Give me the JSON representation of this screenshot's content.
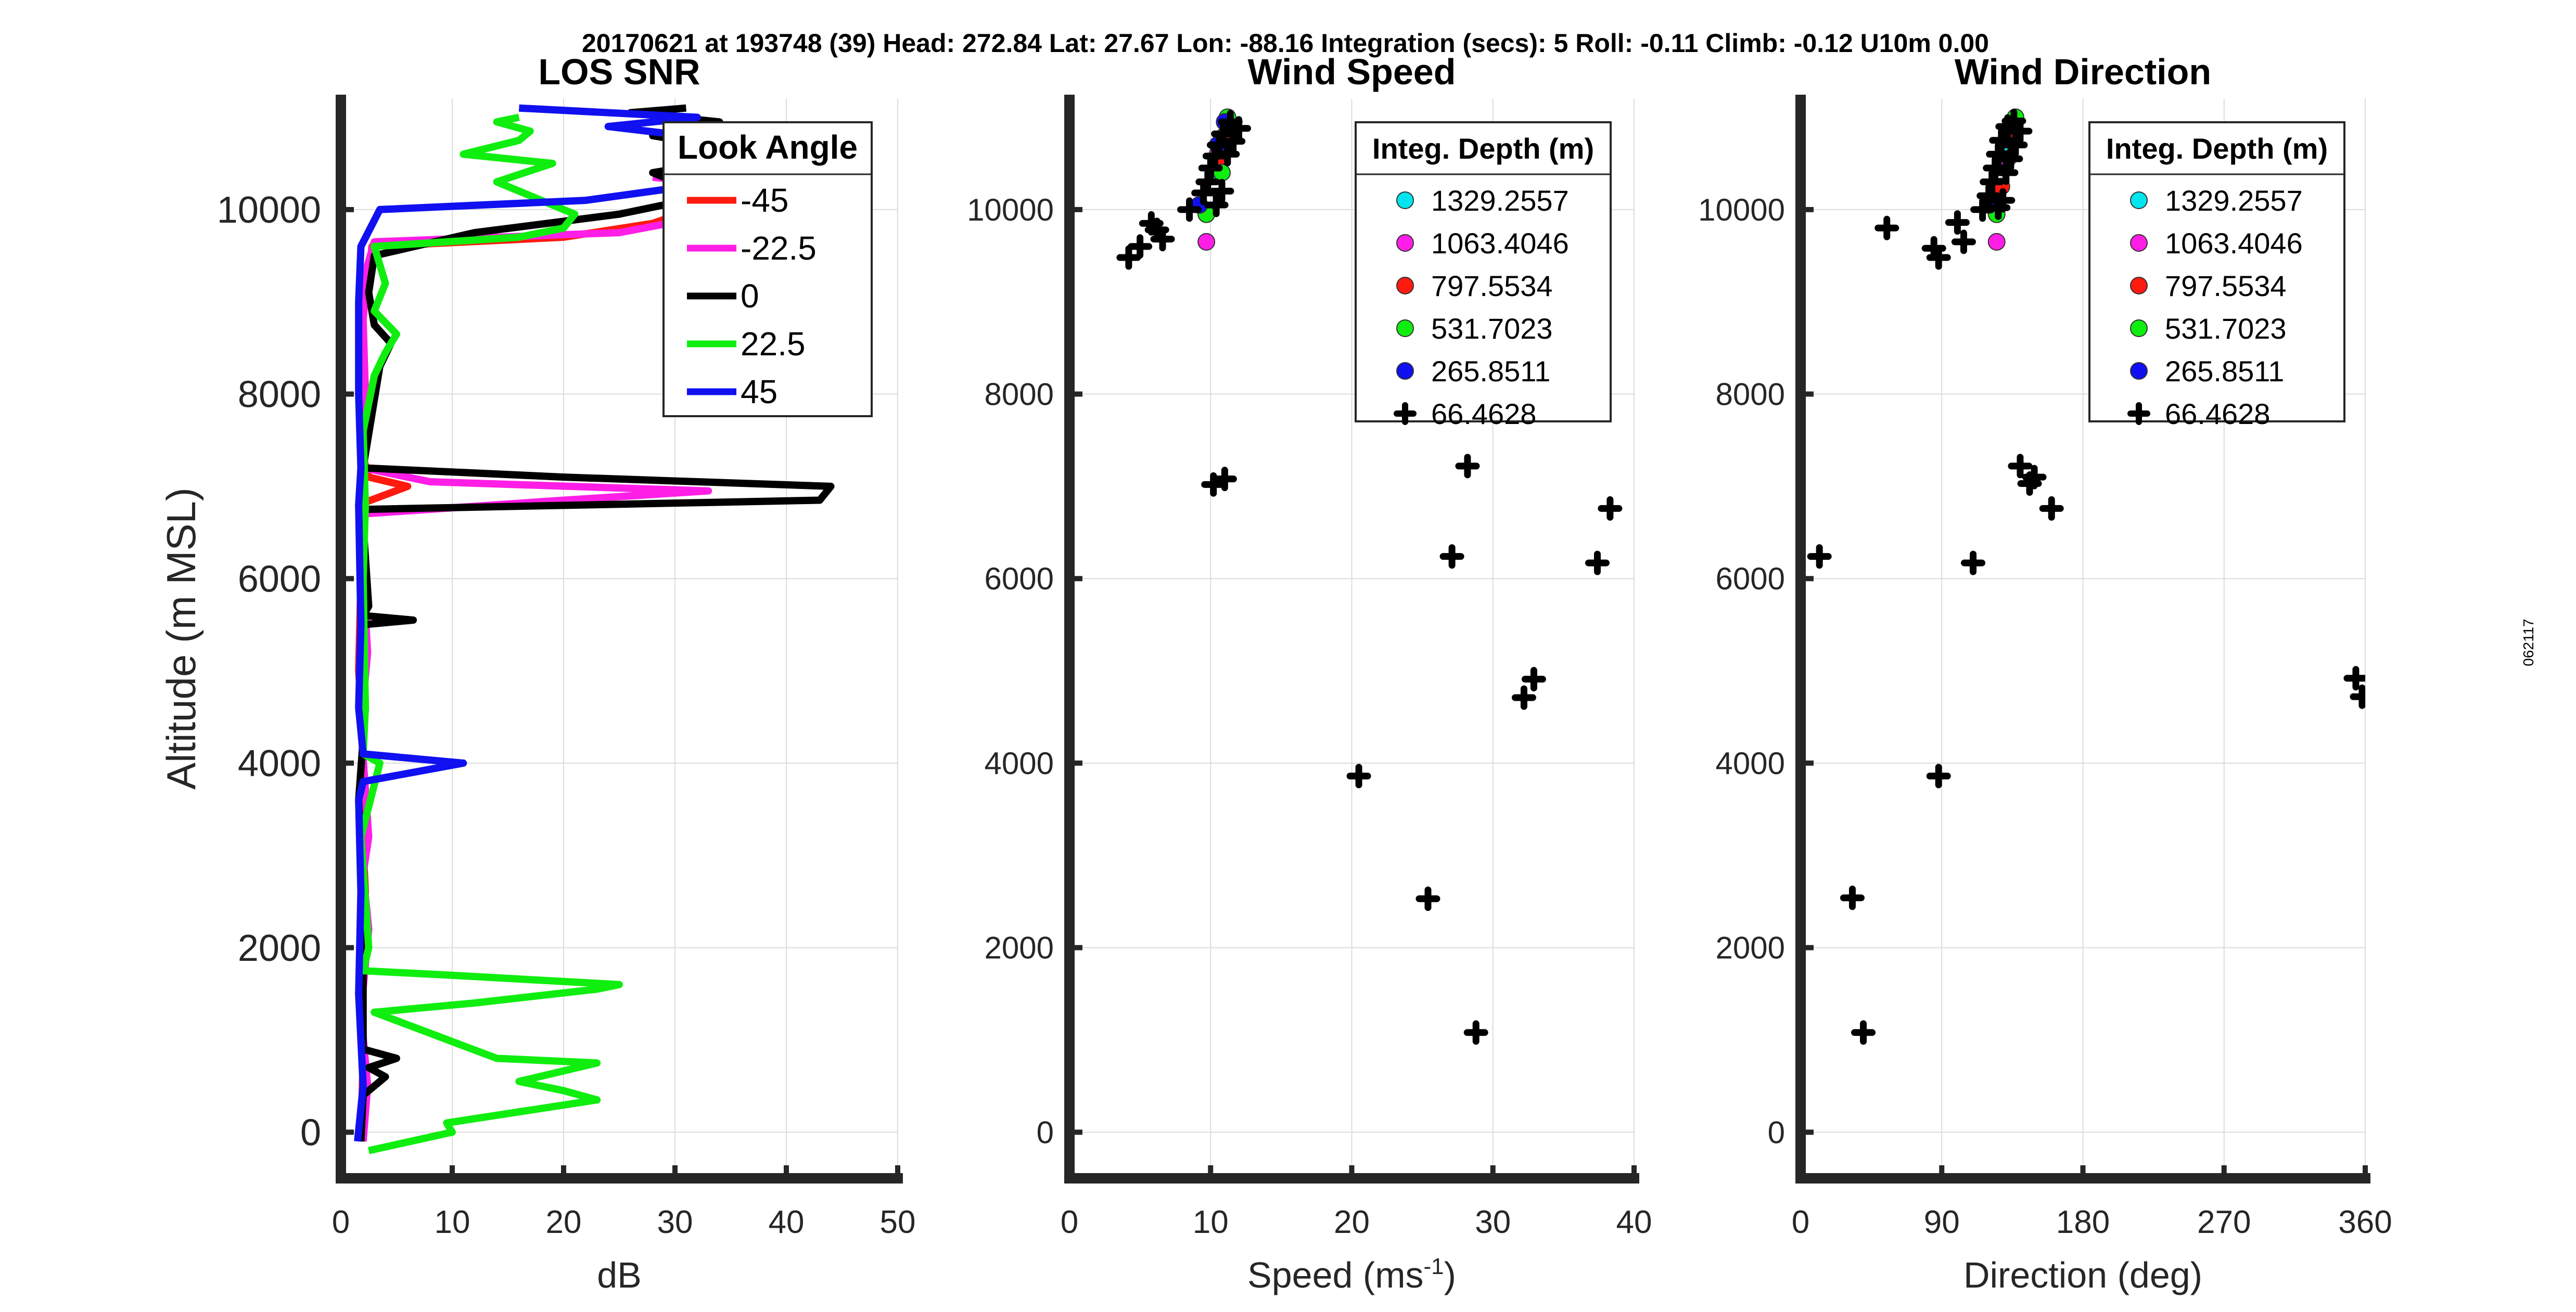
{
  "header": "20170621 at 193748 (39)  Head: 272.84  Lat: 27.67  Lon: -88.16  Integration (secs): 5  Roll: -0.11  Climb: -0.12  U10m 0.00",
  "side_label": "062117",
  "colors": {
    "cyan": "#00e5ee",
    "magenta": "#ff1ee6",
    "red": "#ff1a0f",
    "green": "#0fee0f",
    "blue": "#1010f0",
    "black": "#000000"
  },
  "chart_data": [
    {
      "id": "snr",
      "type": "line",
      "title": "LOS SNR",
      "xlabel": "dB",
      "ylabel": "Altitude (m MSL)",
      "xlim": [
        0,
        50
      ],
      "ylim": [
        -500,
        11200
      ],
      "xticks": [
        0,
        10,
        20,
        30,
        40,
        50
      ],
      "yticks": [
        0,
        2000,
        4000,
        6000,
        8000,
        10000
      ],
      "legend_title": "Look Angle",
      "series": [
        {
          "name": "-45",
          "color": "#ff1a0f",
          "points": [
            [
              1.8,
              -100
            ],
            [
              2.0,
              800
            ],
            [
              1.6,
              1500
            ],
            [
              2.2,
              2600
            ],
            [
              1.8,
              3600
            ],
            [
              2.0,
              4300
            ],
            [
              1.6,
              5000
            ],
            [
              1.8,
              6000
            ],
            [
              1.6,
              6800
            ],
            [
              6.0,
              7000
            ],
            [
              2.5,
              7100
            ],
            [
              1.8,
              7400
            ],
            [
              2.0,
              8200
            ],
            [
              1.8,
              9000
            ],
            [
              2.5,
              9300
            ],
            [
              2.8,
              9600
            ],
            [
              20.0,
              9700
            ],
            [
              28.0,
              9850
            ],
            [
              34.0,
              10100
            ],
            [
              40.0,
              10300
            ],
            [
              32.0,
              10450
            ]
          ]
        },
        {
          "name": "-22.5",
          "color": "#ff1ee6",
          "points": [
            [
              2.0,
              -100
            ],
            [
              2.4,
              500
            ],
            [
              1.8,
              1300
            ],
            [
              2.5,
              2200
            ],
            [
              2.0,
              2800
            ],
            [
              2.5,
              3200
            ],
            [
              1.8,
              4400
            ],
            [
              2.4,
              5200
            ],
            [
              2.0,
              6000
            ],
            [
              1.8,
              6700
            ],
            [
              20.0,
              6850
            ],
            [
              33.0,
              6950
            ],
            [
              8.0,
              7050
            ],
            [
              2.0,
              7200
            ],
            [
              2.2,
              8000
            ],
            [
              2.0,
              8800
            ],
            [
              2.4,
              9400
            ],
            [
              3.0,
              9650
            ],
            [
              25.0,
              9750
            ],
            [
              36.0,
              10000
            ],
            [
              40.0,
              10200
            ],
            [
              28.0,
              10350
            ]
          ]
        },
        {
          "name": "0",
          "color": "#000000",
          "points": [
            [
              1.8,
              -100
            ],
            [
              2.0,
              400
            ],
            [
              4.0,
              600
            ],
            [
              2.5,
              700
            ],
            [
              5.0,
              800
            ],
            [
              2.0,
              900
            ],
            [
              2.0,
              2500
            ],
            [
              1.6,
              3600
            ],
            [
              2.2,
              4600
            ],
            [
              2.0,
              5500
            ],
            [
              6.5,
              5550
            ],
            [
              2.0,
              5600
            ],
            [
              2.5,
              5700
            ],
            [
              2.0,
              6600
            ],
            [
              2.0,
              6750
            ],
            [
              43.0,
              6850
            ],
            [
              44.0,
              7000
            ],
            [
              20.0,
              7100
            ],
            [
              2.0,
              7200
            ],
            [
              3.5,
              8300
            ],
            [
              4.5,
              8550
            ],
            [
              3.0,
              8750
            ],
            [
              2.5,
              9100
            ],
            [
              3.0,
              9500
            ],
            [
              12.0,
              9750
            ],
            [
              25.0,
              9950
            ],
            [
              33.0,
              10150
            ],
            [
              28.0,
              10400
            ],
            [
              38.0,
              10600
            ],
            [
              28.0,
              10800
            ],
            [
              34.0,
              10950
            ],
            [
              26.0,
              11050
            ],
            [
              31.0,
              11100
            ]
          ]
        },
        {
          "name": "22.5",
          "color": "#0fee0f",
          "points": [
            [
              2.5,
              -200
            ],
            [
              10.0,
              0
            ],
            [
              9.5,
              100
            ],
            [
              23.0,
              350
            ],
            [
              20.0,
              450
            ],
            [
              16.0,
              550
            ],
            [
              23.0,
              750
            ],
            [
              14.0,
              800
            ],
            [
              3.0,
              1300
            ],
            [
              12.0,
              1400
            ],
            [
              23.0,
              1550
            ],
            [
              25.0,
              1600
            ],
            [
              10.0,
              1700
            ],
            [
              2.0,
              1750
            ],
            [
              2.5,
              2000
            ],
            [
              1.8,
              3200
            ],
            [
              3.5,
              4000
            ],
            [
              2.0,
              4100
            ],
            [
              2.2,
              4600
            ],
            [
              2.0,
              6000
            ],
            [
              2.2,
              6800
            ],
            [
              2.0,
              7600
            ],
            [
              3.0,
              8200
            ],
            [
              4.0,
              8450
            ],
            [
              5.0,
              8650
            ],
            [
              3.0,
              8900
            ],
            [
              4.0,
              9200
            ],
            [
              3.0,
              9600
            ],
            [
              16.0,
              9700
            ],
            [
              20.0,
              9800
            ],
            [
              21.0,
              9950
            ],
            [
              18.0,
              10100
            ],
            [
              14.0,
              10300
            ],
            [
              19.0,
              10500
            ],
            [
              11.0,
              10600
            ],
            [
              16.0,
              10750
            ],
            [
              17.0,
              10850
            ],
            [
              14.0,
              10950
            ],
            [
              16.0,
              11000
            ]
          ]
        },
        {
          "name": "45",
          "color": "#1010f0",
          "points": [
            [
              1.5,
              -100
            ],
            [
              2.0,
              500
            ],
            [
              1.6,
              1500
            ],
            [
              1.8,
              2600
            ],
            [
              1.6,
              3600
            ],
            [
              2.0,
              3800
            ],
            [
              11.0,
              4000
            ],
            [
              2.0,
              4100
            ],
            [
              1.6,
              4600
            ],
            [
              1.8,
              5500
            ],
            [
              1.6,
              6800
            ],
            [
              1.8,
              7200
            ],
            [
              1.6,
              8000
            ],
            [
              1.6,
              9000
            ],
            [
              1.8,
              9600
            ],
            [
              3.5,
              10000
            ],
            [
              22.0,
              10100
            ],
            [
              34.0,
              10300
            ],
            [
              30.0,
              10450
            ],
            [
              38.0,
              10700
            ],
            [
              24.0,
              10900
            ],
            [
              32.0,
              11000
            ],
            [
              16.0,
              11100
            ]
          ]
        }
      ]
    },
    {
      "id": "speed",
      "type": "scatter",
      "title": "Wind Speed",
      "xlabel": "Speed (ms",
      "xlabel_sup": "-1",
      "xlabel_end": ")",
      "xlim": [
        0,
        40
      ],
      "ylim": [
        -500,
        11200
      ],
      "xticks": [
        0,
        10,
        20,
        30,
        40
      ],
      "yticks": [
        0,
        2000,
        4000,
        6000,
        8000,
        10000
      ],
      "legend_title": "Integ. Depth (m)",
      "series": [
        {
          "name": "1329.2557",
          "color": "#00e5ee",
          "marker": "circle",
          "points": [
            [
              11.0,
              10800
            ],
            [
              10.8,
              10650
            ],
            [
              10.2,
              10400
            ]
          ]
        },
        {
          "name": "1063.4046",
          "color": "#ff1ee6",
          "marker": "circle",
          "points": [
            [
              9.7,
              9650
            ],
            [
              10.5,
              10600
            ]
          ]
        },
        {
          "name": "797.5534",
          "color": "#ff1a0f",
          "marker": "circle",
          "points": [
            [
              11.0,
              10750
            ],
            [
              10.6,
              10500
            ]
          ]
        },
        {
          "name": "531.7023",
          "color": "#0fee0f",
          "marker": "circle",
          "points": [
            [
              11.2,
              11000
            ],
            [
              9.7,
              9950
            ],
            [
              10.8,
              10400
            ]
          ]
        },
        {
          "name": "265.8511",
          "color": "#1010f0",
          "marker": "circle",
          "points": [
            [
              9.2,
              10050
            ],
            [
              11.0,
              10950
            ],
            [
              10.5,
              10700
            ]
          ]
        },
        {
          "name": "66.4628",
          "color": "#000000",
          "marker": "plus",
          "points": [
            [
              4.2,
              9480
            ],
            [
              5.0,
              9600
            ],
            [
              5.8,
              9850
            ],
            [
              6.2,
              9780
            ],
            [
              6.6,
              9680
            ],
            [
              8.5,
              10000
            ],
            [
              9.5,
              10180
            ],
            [
              9.8,
              10300
            ],
            [
              10.0,
              10450
            ],
            [
              10.3,
              10580
            ],
            [
              10.6,
              10700
            ],
            [
              10.9,
              10820
            ],
            [
              11.4,
              10950
            ],
            [
              12.0,
              10880
            ],
            [
              11.6,
              10740
            ],
            [
              11.2,
              10600
            ],
            [
              10.8,
              10200
            ],
            [
              10.4,
              10050
            ],
            [
              10.2,
              7020
            ],
            [
              11.0,
              7080
            ],
            [
              28.2,
              7220
            ],
            [
              38.3,
              6760
            ],
            [
              27.1,
              6240
            ],
            [
              37.4,
              6170
            ],
            [
              32.9,
              4910
            ],
            [
              32.2,
              4710
            ],
            [
              20.5,
              3860
            ],
            [
              25.4,
              2530
            ],
            [
              28.8,
              1080
            ]
          ]
        }
      ]
    },
    {
      "id": "direction",
      "type": "scatter",
      "title": "Wind Direction",
      "xlabel": "Direction (deg)",
      "xlim": [
        0,
        360
      ],
      "ylim": [
        -500,
        11200
      ],
      "xticks": [
        0,
        90,
        180,
        270,
        360
      ],
      "yticks": [
        0,
        2000,
        4000,
        6000,
        8000,
        10000
      ],
      "legend_title": "Integ. Depth (m)",
      "series": [
        {
          "name": "1329.2557",
          "color": "#00e5ee",
          "marker": "circle",
          "points": [
            [
              133,
              10650
            ],
            [
              130,
              10450
            ]
          ]
        },
        {
          "name": "1063.4046",
          "color": "#ff1ee6",
          "marker": "circle",
          "points": [
            [
              125,
              9650
            ],
            [
              132,
              10550
            ]
          ]
        },
        {
          "name": "797.5534",
          "color": "#ff1a0f",
          "marker": "circle",
          "points": [
            [
              134,
              10800
            ],
            [
              128,
              10250
            ]
          ]
        },
        {
          "name": "531.7023",
          "color": "#0fee0f",
          "marker": "circle",
          "points": [
            [
              137,
              11000
            ],
            [
              125,
              9950
            ]
          ]
        },
        {
          "name": "265.8511",
          "color": "#1010f0",
          "marker": "circle",
          "points": [
            [
              120,
              10050
            ]
          ]
        },
        {
          "name": "66.4628",
          "color": "#000000",
          "marker": "plus",
          "points": [
            [
              55,
              9800
            ],
            [
              85,
              9580
            ],
            [
              88,
              9480
            ],
            [
              100,
              9860
            ],
            [
              104,
              9650
            ],
            [
              116,
              10000
            ],
            [
              120,
              10150
            ],
            [
              122,
              10300
            ],
            [
              124,
              10450
            ],
            [
              126,
              10600
            ],
            [
              128,
              10750
            ],
            [
              132,
              10900
            ],
            [
              136,
              10960
            ],
            [
              140,
              10850
            ],
            [
              137,
              10700
            ],
            [
              134,
              10550
            ],
            [
              131,
              10400
            ],
            [
              129,
              10100
            ],
            [
              126,
              10020
            ],
            [
              140,
              7220
            ],
            [
              146,
              7030
            ],
            [
              149,
              7100
            ],
            [
              160,
              6760
            ],
            [
              12,
              6240
            ],
            [
              110,
              6170
            ],
            [
              354,
              4920
            ],
            [
              358,
              4720
            ],
            [
              88,
              3860
            ],
            [
              33,
              2540
            ],
            [
              40,
              1080
            ]
          ]
        }
      ]
    }
  ]
}
